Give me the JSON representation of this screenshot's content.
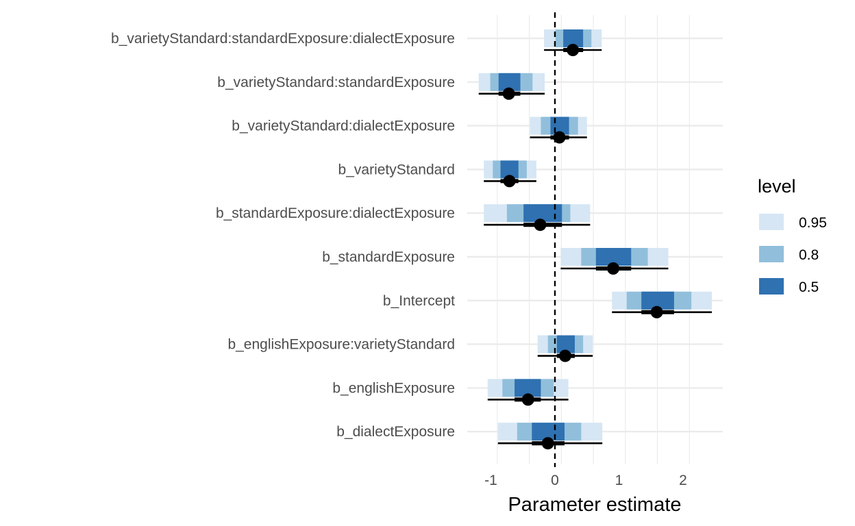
{
  "chart_data": {
    "type": "interval",
    "title": "",
    "xlabel": "Parameter estimate",
    "ylabel": "",
    "xlim": [
      -1.4,
      2.55
    ],
    "xticks": [
      -1,
      0,
      1,
      2
    ],
    "xtick_labels": [
      "-1",
      "0",
      "1",
      "2"
    ],
    "grid": true,
    "reference_line": {
      "x": 0,
      "style": "dashed"
    },
    "legend": {
      "title": "level",
      "position": "right",
      "entries": [
        {
          "label": "0.95",
          "color": "#d6e6f4"
        },
        {
          "label": "0.8",
          "color": "#91bfdb"
        },
        {
          "label": "0.5",
          "color": "#2f71b1"
        }
      ]
    },
    "parameters": [
      {
        "name": "b_varietyStandard:standardExposure:dialectExposure",
        "estimate": 0.28,
        "i95": [
          -0.17,
          0.73
        ],
        "i80": [
          0.01,
          0.57
        ],
        "i50": [
          0.13,
          0.44
        ]
      },
      {
        "name": "b_varietyStandard:standardExposure",
        "estimate": -0.72,
        "i95": [
          -1.19,
          -0.16
        ],
        "i80": [
          -1.01,
          -0.35
        ],
        "i50": [
          -0.88,
          -0.54
        ]
      },
      {
        "name": "b_varietyStandard:dialectExposure",
        "estimate": 0.07,
        "i95": [
          -0.39,
          0.5
        ],
        "i80": [
          -0.22,
          0.36
        ],
        "i50": [
          -0.07,
          0.22
        ]
      },
      {
        "name": "b_varietyStandard",
        "estimate": -0.71,
        "i95": [
          -1.11,
          -0.29
        ],
        "i80": [
          -0.97,
          -0.44
        ],
        "i50": [
          -0.85,
          -0.57
        ]
      },
      {
        "name": "b_standardExposure:dialectExposure",
        "estimate": -0.23,
        "i95": [
          -1.11,
          0.55
        ],
        "i80": [
          -0.75,
          0.24
        ],
        "i50": [
          -0.49,
          0.11
        ]
      },
      {
        "name": "b_standardExposure",
        "estimate": 0.91,
        "i95": [
          0.09,
          1.77
        ],
        "i80": [
          0.41,
          1.45
        ],
        "i50": [
          0.64,
          1.19
        ]
      },
      {
        "name": "b_Intercept",
        "estimate": 1.59,
        "i95": [
          0.89,
          2.45
        ],
        "i80": [
          1.12,
          2.13
        ],
        "i50": [
          1.35,
          1.86
        ]
      },
      {
        "name": "b_englishExposure:varietyStandard",
        "estimate": 0.16,
        "i95": [
          -0.27,
          0.59
        ],
        "i80": [
          -0.11,
          0.44
        ],
        "i50": [
          0.03,
          0.31
        ]
      },
      {
        "name": "b_englishExposure",
        "estimate": -0.42,
        "i95": [
          -1.05,
          0.21
        ],
        "i80": [
          -0.82,
          -0.02
        ],
        "i50": [
          -0.63,
          -0.22
        ]
      },
      {
        "name": "b_dialectExposure",
        "estimate": -0.11,
        "i95": [
          -0.89,
          0.74
        ],
        "i80": [
          -0.59,
          0.41
        ],
        "i50": [
          -0.36,
          0.15
        ]
      }
    ]
  }
}
